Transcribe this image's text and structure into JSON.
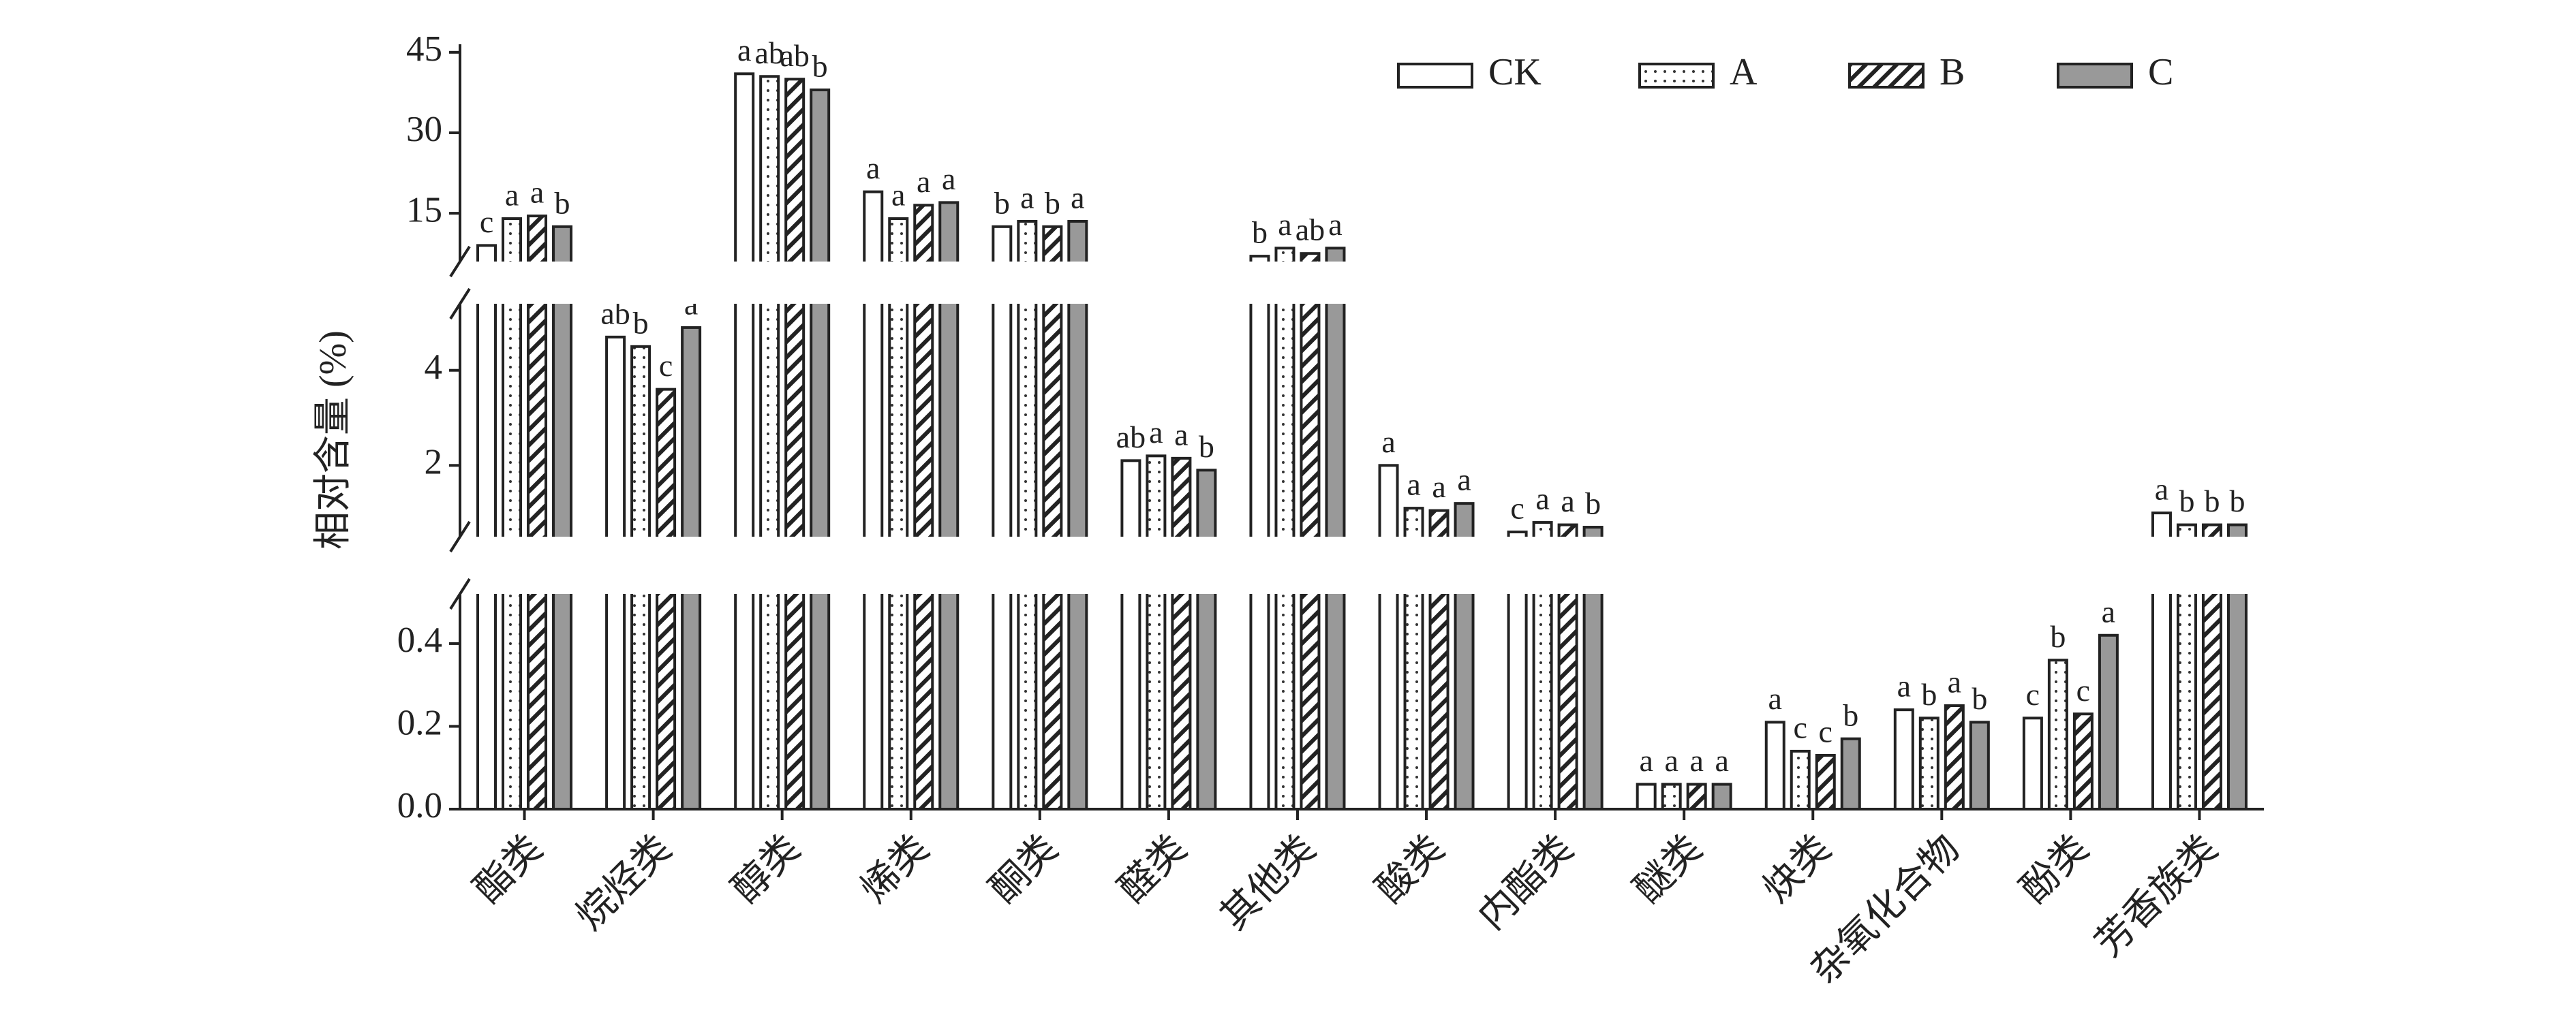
{
  "chart_data": {
    "type": "bar",
    "y_label": "相对含量 (%)",
    "categories": [
      "酯类",
      "烷烃类",
      "醇类",
      "烯类",
      "酮类",
      "醛类",
      "其他类",
      "酸类",
      "内酯类",
      "醚类",
      "炔类",
      "杂氧化合物",
      "酚类",
      "芳香族类"
    ],
    "series": [
      {
        "name": "CK",
        "color": "#ffffff",
        "pattern": "none",
        "values": [
          9,
          4.7,
          41,
          19,
          12.5,
          2.1,
          7,
          2.0,
          0.6,
          0.06,
          0.21,
          0.24,
          0.22,
          1.0
        ],
        "letters": [
          "c",
          "ab",
          "a",
          "a",
          "b",
          "ab",
          "b",
          "a",
          "c",
          "a",
          "a",
          "a",
          "c",
          "a"
        ]
      },
      {
        "name": "A",
        "color": "#ffffff",
        "pattern": "dots",
        "values": [
          14,
          4.5,
          40.5,
          14,
          13.5,
          2.2,
          8.5,
          1.1,
          0.8,
          0.06,
          0.14,
          0.22,
          0.36,
          0.75
        ],
        "letters": [
          "a",
          "b",
          "ab",
          "a",
          "a",
          "a",
          "a",
          "a",
          "a",
          "a",
          "c",
          "b",
          "b",
          "b"
        ]
      },
      {
        "name": "B",
        "color": "#ffffff",
        "pattern": "hatch",
        "values": [
          14.5,
          3.6,
          40,
          16.5,
          12.5,
          2.15,
          7.5,
          1.05,
          0.75,
          0.06,
          0.13,
          0.25,
          0.23,
          0.75
        ],
        "letters": [
          "a",
          "c",
          "ab",
          "a",
          "b",
          "a",
          "ab",
          "a",
          "a",
          "a",
          "c",
          "a",
          "c",
          "b"
        ]
      },
      {
        "name": "C",
        "color": "#999999",
        "pattern": "none",
        "values": [
          12.5,
          4.9,
          38,
          17,
          13.5,
          1.9,
          8.5,
          1.2,
          0.7,
          0.06,
          0.17,
          0.21,
          0.42,
          0.75
        ],
        "letters": [
          "b",
          "a",
          "b",
          "a",
          "a",
          "b",
          "a",
          "a",
          "b",
          "a",
          "b",
          "b",
          "a",
          "b"
        ]
      }
    ],
    "y_segments": [
      {
        "ylim": [
          0,
          0.52
        ],
        "yticks": [
          {
            "value": 0,
            "label": "0.0"
          },
          0.2,
          0.4
        ]
      },
      {
        "ylim": [
          0.5,
          5.4
        ],
        "yticks": [
          2,
          4
        ]
      },
      {
        "ylim": [
          6,
          46.5
        ],
        "yticks": [
          15,
          30,
          45
        ]
      }
    ],
    "legend": "top-right"
  }
}
